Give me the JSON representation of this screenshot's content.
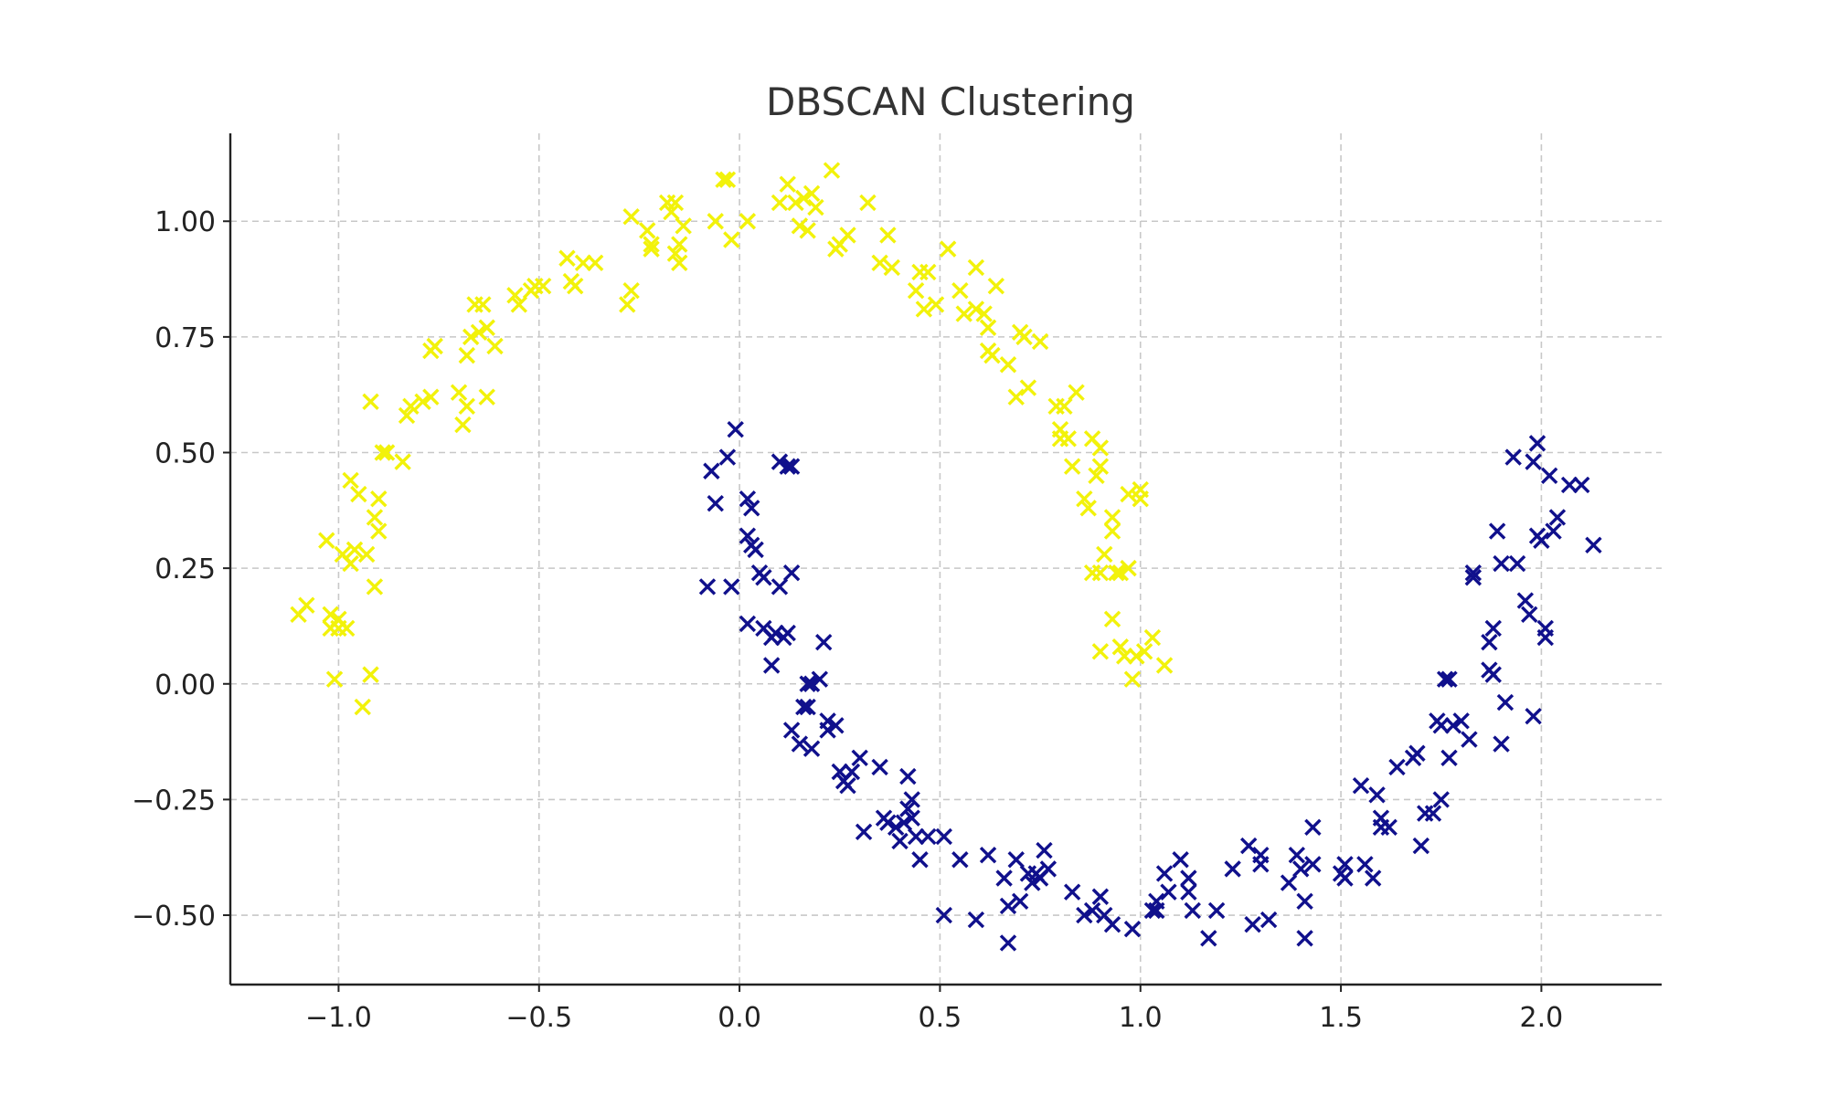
{
  "chart_data": {
    "type": "scatter",
    "title": "DBSCAN Clustering",
    "xlabel": "",
    "ylabel": "",
    "xlim": [
      -1.27,
      2.3
    ],
    "ylim": [
      -0.65,
      1.19
    ],
    "xticks": [
      -1.0,
      -0.5,
      0.0,
      0.5,
      1.0,
      1.5,
      2.0
    ],
    "xtick_labels": [
      "−1.0",
      "−0.5",
      "0.0",
      "0.5",
      "1.0",
      "1.5",
      "2.0"
    ],
    "yticks": [
      1.0,
      0.75,
      0.5,
      0.25,
      0.0,
      -0.25,
      -0.5
    ],
    "ytick_labels": [
      "1.00",
      "0.75",
      "0.50",
      "0.25",
      "0.00",
      "−0.25",
      "−0.50"
    ],
    "grid": true,
    "marker": "x",
    "series": [
      {
        "color": "#f2f20a",
        "points": [
          [
            -1.1,
            0.15
          ],
          [
            -1.08,
            0.17
          ],
          [
            -1.03,
            0.31
          ],
          [
            -1.02,
            0.15
          ],
          [
            -1.02,
            0.12
          ],
          [
            -1.01,
            0.01
          ],
          [
            -1.0,
            0.12
          ],
          [
            -1.0,
            0.14
          ],
          [
            -0.99,
            0.28
          ],
          [
            -0.98,
            0.12
          ],
          [
            -0.97,
            0.26
          ],
          [
            -0.96,
            0.29
          ],
          [
            -0.97,
            0.44
          ],
          [
            -0.95,
            0.41
          ],
          [
            -0.94,
            -0.05
          ],
          [
            -0.92,
            0.02
          ],
          [
            -0.93,
            0.28
          ],
          [
            -0.91,
            0.21
          ],
          [
            -0.91,
            0.36
          ],
          [
            -0.9,
            0.33
          ],
          [
            -0.9,
            0.4
          ],
          [
            -0.92,
            0.61
          ],
          [
            -0.89,
            0.5
          ],
          [
            -0.88,
            0.5
          ],
          [
            -0.84,
            0.48
          ],
          [
            -0.83,
            0.58
          ],
          [
            -0.82,
            0.6
          ],
          [
            -0.79,
            0.61
          ],
          [
            -0.77,
            0.62
          ],
          [
            -0.77,
            0.72
          ],
          [
            -0.76,
            0.73
          ],
          [
            -0.7,
            0.63
          ],
          [
            -0.69,
            0.56
          ],
          [
            -0.68,
            0.6
          ],
          [
            -0.68,
            0.71
          ],
          [
            -0.67,
            0.75
          ],
          [
            -0.66,
            0.82
          ],
          [
            -0.65,
            0.76
          ],
          [
            -0.64,
            0.82
          ],
          [
            -0.63,
            0.62
          ],
          [
            -0.63,
            0.77
          ],
          [
            -0.61,
            0.73
          ],
          [
            -0.56,
            0.84
          ],
          [
            -0.55,
            0.82
          ],
          [
            -0.52,
            0.85
          ],
          [
            -0.51,
            0.86
          ],
          [
            -0.49,
            0.86
          ],
          [
            -0.43,
            0.92
          ],
          [
            -0.42,
            0.87
          ],
          [
            -0.41,
            0.86
          ],
          [
            -0.39,
            0.91
          ],
          [
            -0.36,
            0.91
          ],
          [
            -0.28,
            0.82
          ],
          [
            -0.27,
            0.85
          ],
          [
            -0.27,
            1.01
          ],
          [
            -0.23,
            0.98
          ],
          [
            -0.22,
            0.95
          ],
          [
            -0.22,
            0.94
          ],
          [
            -0.18,
            1.04
          ],
          [
            -0.17,
            1.02
          ],
          [
            -0.16,
            1.04
          ],
          [
            -0.16,
            0.93
          ],
          [
            -0.15,
            0.91
          ],
          [
            -0.15,
            0.95
          ],
          [
            -0.14,
            0.99
          ],
          [
            -0.06,
            1.0
          ],
          [
            -0.04,
            1.09
          ],
          [
            -0.03,
            1.09
          ],
          [
            -0.02,
            0.96
          ],
          [
            0.02,
            1.0
          ],
          [
            0.1,
            1.04
          ],
          [
            0.12,
            1.08
          ],
          [
            0.14,
            1.04
          ],
          [
            0.15,
            0.99
          ],
          [
            0.16,
            1.05
          ],
          [
            0.17,
            0.98
          ],
          [
            0.18,
            1.06
          ],
          [
            0.19,
            1.03
          ],
          [
            0.23,
            1.11
          ],
          [
            0.24,
            0.94
          ],
          [
            0.25,
            0.95
          ],
          [
            0.27,
            0.97
          ],
          [
            0.32,
            1.04
          ],
          [
            0.35,
            0.91
          ],
          [
            0.37,
            0.97
          ],
          [
            0.38,
            0.9
          ],
          [
            0.44,
            0.85
          ],
          [
            0.45,
            0.89
          ],
          [
            0.46,
            0.81
          ],
          [
            0.47,
            0.89
          ],
          [
            0.49,
            0.82
          ],
          [
            0.52,
            0.94
          ],
          [
            0.55,
            0.85
          ],
          [
            0.56,
            0.8
          ],
          [
            0.59,
            0.81
          ],
          [
            0.59,
            0.9
          ],
          [
            0.61,
            0.8
          ],
          [
            0.62,
            0.77
          ],
          [
            0.62,
            0.72
          ],
          [
            0.63,
            0.71
          ],
          [
            0.64,
            0.86
          ],
          [
            0.67,
            0.69
          ],
          [
            0.69,
            0.62
          ],
          [
            0.7,
            0.76
          ],
          [
            0.71,
            0.75
          ],
          [
            0.72,
            0.64
          ],
          [
            0.75,
            0.74
          ],
          [
            0.79,
            0.6
          ],
          [
            0.8,
            0.53
          ],
          [
            0.8,
            0.55
          ],
          [
            0.81,
            0.6
          ],
          [
            0.82,
            0.53
          ],
          [
            0.83,
            0.47
          ],
          [
            0.84,
            0.63
          ],
          [
            0.86,
            0.4
          ],
          [
            0.87,
            0.38
          ],
          [
            0.88,
            0.24
          ],
          [
            0.88,
            0.53
          ],
          [
            0.89,
            0.45
          ],
          [
            0.9,
            0.47
          ],
          [
            0.9,
            0.51
          ],
          [
            0.9,
            0.24
          ],
          [
            0.9,
            0.07
          ],
          [
            0.91,
            0.28
          ],
          [
            0.93,
            0.36
          ],
          [
            0.93,
            0.33
          ],
          [
            0.93,
            0.14
          ],
          [
            0.94,
            0.24
          ],
          [
            0.95,
            0.24
          ],
          [
            0.95,
            0.08
          ],
          [
            0.96,
            0.06
          ],
          [
            0.97,
            0.41
          ],
          [
            0.97,
            0.25
          ],
          [
            0.98,
            0.01
          ],
          [
            0.99,
            0.06
          ],
          [
            1.0,
            0.4
          ],
          [
            1.0,
            0.42
          ],
          [
            1.01,
            0.07
          ],
          [
            1.03,
            0.1
          ],
          [
            1.06,
            0.04
          ]
        ]
      },
      {
        "color": "#10108c",
        "points": [
          [
            -0.08,
            0.21
          ],
          [
            -0.07,
            0.46
          ],
          [
            -0.06,
            0.39
          ],
          [
            -0.03,
            0.49
          ],
          [
            -0.02,
            0.21
          ],
          [
            -0.01,
            0.55
          ],
          [
            0.02,
            0.13
          ],
          [
            0.02,
            0.4
          ],
          [
            0.03,
            0.38
          ],
          [
            0.02,
            0.32
          ],
          [
            0.03,
            0.3
          ],
          [
            0.04,
            0.29
          ],
          [
            0.05,
            0.24
          ],
          [
            0.06,
            0.23
          ],
          [
            0.06,
            0.12
          ],
          [
            0.08,
            0.1
          ],
          [
            0.08,
            0.04
          ],
          [
            0.09,
            0.11
          ],
          [
            0.1,
            0.21
          ],
          [
            0.1,
            0.48
          ],
          [
            0.11,
            0.1
          ],
          [
            0.12,
            0.47
          ],
          [
            0.12,
            0.11
          ],
          [
            0.13,
            0.24
          ],
          [
            0.13,
            0.47
          ],
          [
            0.13,
            -0.1
          ],
          [
            0.15,
            -0.13
          ],
          [
            0.16,
            -0.05
          ],
          [
            0.17,
            0.0
          ],
          [
            0.17,
            -0.05
          ],
          [
            0.18,
            -0.14
          ],
          [
            0.18,
            0.0
          ],
          [
            0.2,
            0.01
          ],
          [
            0.21,
            0.09
          ],
          [
            0.22,
            -0.08
          ],
          [
            0.22,
            -0.1
          ],
          [
            0.24,
            -0.09
          ],
          [
            0.25,
            -0.19
          ],
          [
            0.26,
            -0.21
          ],
          [
            0.27,
            -0.22
          ],
          [
            0.28,
            -0.19
          ],
          [
            0.3,
            -0.16
          ],
          [
            0.31,
            -0.32
          ],
          [
            0.35,
            -0.18
          ],
          [
            0.36,
            -0.29
          ],
          [
            0.37,
            -0.3
          ],
          [
            0.39,
            -0.31
          ],
          [
            0.4,
            -0.34
          ],
          [
            0.41,
            -0.3
          ],
          [
            0.42,
            -0.2
          ],
          [
            0.42,
            -0.27
          ],
          [
            0.43,
            -0.29
          ],
          [
            0.43,
            -0.25
          ],
          [
            0.44,
            -0.33
          ],
          [
            0.45,
            -0.38
          ],
          [
            0.47,
            -0.33
          ],
          [
            0.51,
            -0.5
          ],
          [
            0.51,
            -0.33
          ],
          [
            0.55,
            -0.38
          ],
          [
            0.59,
            -0.51
          ],
          [
            0.62,
            -0.37
          ],
          [
            0.66,
            -0.42
          ],
          [
            0.67,
            -0.48
          ],
          [
            0.67,
            -0.56
          ],
          [
            0.69,
            -0.38
          ],
          [
            0.7,
            -0.47
          ],
          [
            0.72,
            -0.41
          ],
          [
            0.73,
            -0.43
          ],
          [
            0.74,
            -0.41
          ],
          [
            0.75,
            -0.42
          ],
          [
            0.76,
            -0.36
          ],
          [
            0.77,
            -0.4
          ],
          [
            0.83,
            -0.45
          ],
          [
            0.86,
            -0.5
          ],
          [
            0.88,
            -0.49
          ],
          [
            0.9,
            -0.46
          ],
          [
            0.91,
            -0.5
          ],
          [
            0.93,
            -0.52
          ],
          [
            0.98,
            -0.53
          ],
          [
            1.03,
            -0.49
          ],
          [
            1.04,
            -0.47
          ],
          [
            1.04,
            -0.49
          ],
          [
            1.06,
            -0.41
          ],
          [
            1.07,
            -0.45
          ],
          [
            1.1,
            -0.38
          ],
          [
            1.12,
            -0.42
          ],
          [
            1.12,
            -0.45
          ],
          [
            1.13,
            -0.49
          ],
          [
            1.17,
            -0.55
          ],
          [
            1.19,
            -0.49
          ],
          [
            1.23,
            -0.4
          ],
          [
            1.27,
            -0.35
          ],
          [
            1.28,
            -0.52
          ],
          [
            1.3,
            -0.39
          ],
          [
            1.3,
            -0.37
          ],
          [
            1.32,
            -0.51
          ],
          [
            1.37,
            -0.43
          ],
          [
            1.39,
            -0.37
          ],
          [
            1.4,
            -0.4
          ],
          [
            1.41,
            -0.47
          ],
          [
            1.41,
            -0.55
          ],
          [
            1.43,
            -0.31
          ],
          [
            1.43,
            -0.39
          ],
          [
            1.5,
            -0.41
          ],
          [
            1.51,
            -0.39
          ],
          [
            1.51,
            -0.42
          ],
          [
            1.55,
            -0.22
          ],
          [
            1.56,
            -0.39
          ],
          [
            1.58,
            -0.42
          ],
          [
            1.59,
            -0.24
          ],
          [
            1.6,
            -0.29
          ],
          [
            1.6,
            -0.31
          ],
          [
            1.62,
            -0.31
          ],
          [
            1.64,
            -0.18
          ],
          [
            1.68,
            -0.16
          ],
          [
            1.69,
            -0.15
          ],
          [
            1.7,
            -0.35
          ],
          [
            1.71,
            -0.28
          ],
          [
            1.73,
            -0.28
          ],
          [
            1.74,
            -0.08
          ],
          [
            1.75,
            -0.25
          ],
          [
            1.75,
            -0.09
          ],
          [
            1.76,
            0.01
          ],
          [
            1.77,
            0.01
          ],
          [
            1.77,
            -0.16
          ],
          [
            1.78,
            -0.09
          ],
          [
            1.8,
            -0.08
          ],
          [
            1.82,
            -0.12
          ],
          [
            1.83,
            0.23
          ],
          [
            1.83,
            0.24
          ],
          [
            1.87,
            0.03
          ],
          [
            1.87,
            0.09
          ],
          [
            1.88,
            0.12
          ],
          [
            1.88,
            0.02
          ],
          [
            1.89,
            0.33
          ],
          [
            1.9,
            -0.13
          ],
          [
            1.9,
            0.26
          ],
          [
            1.91,
            -0.04
          ],
          [
            1.93,
            0.49
          ],
          [
            1.94,
            0.26
          ],
          [
            1.96,
            0.18
          ],
          [
            1.97,
            0.15
          ],
          [
            1.98,
            -0.07
          ],
          [
            1.98,
            0.48
          ],
          [
            1.99,
            0.52
          ],
          [
            1.99,
            0.32
          ],
          [
            2.0,
            0.31
          ],
          [
            2.01,
            0.1
          ],
          [
            2.01,
            0.12
          ],
          [
            2.02,
            0.45
          ],
          [
            2.03,
            0.33
          ],
          [
            2.04,
            0.36
          ],
          [
            2.07,
            0.43
          ],
          [
            2.1,
            0.43
          ],
          [
            2.13,
            0.3
          ]
        ]
      }
    ]
  }
}
